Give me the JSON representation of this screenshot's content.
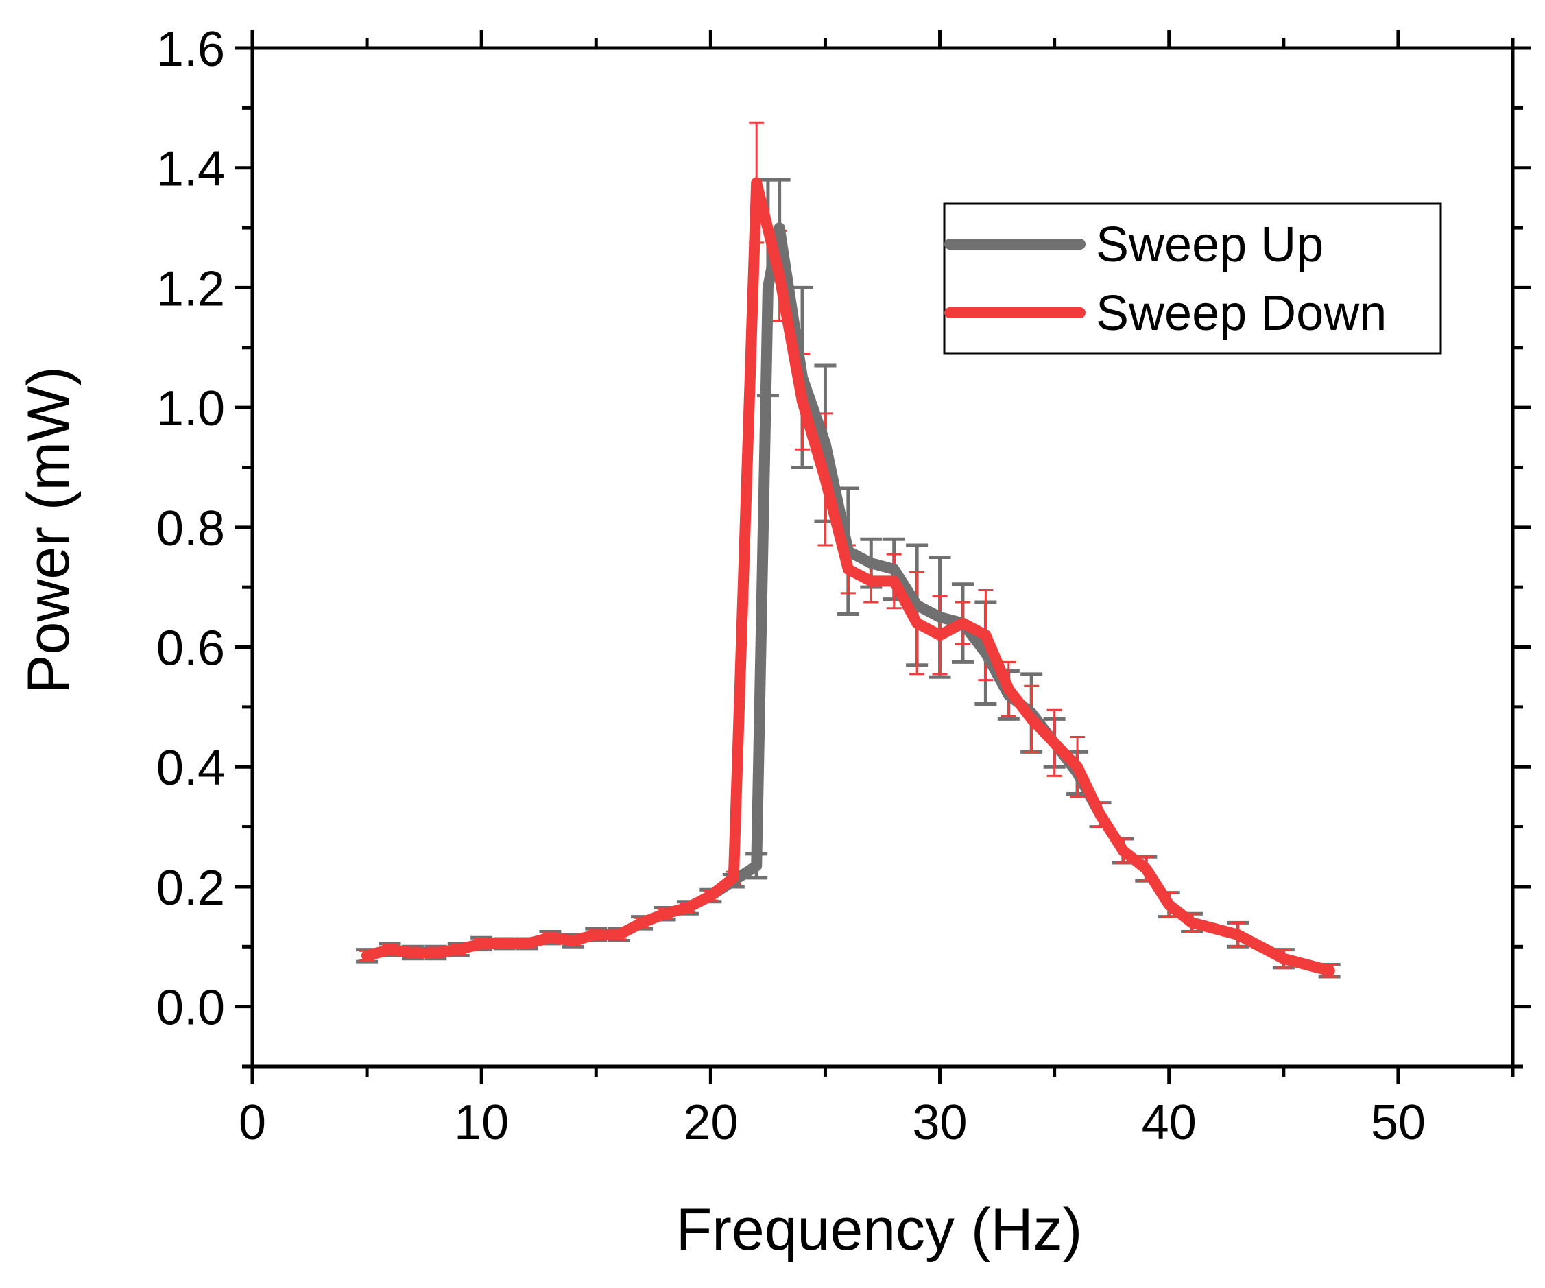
{
  "chart_data": {
    "type": "line",
    "xlabel": "Frequency (Hz)",
    "ylabel": "Power (mW)",
    "xlim": [
      0,
      55
    ],
    "ylim": [
      -0.1,
      1.6
    ],
    "x_ticks": [
      0,
      10,
      20,
      30,
      40,
      50
    ],
    "x_tick_labels": [
      "0",
      "10",
      "20",
      "30",
      "40",
      "50"
    ],
    "y_ticks": [
      0.0,
      0.2,
      0.4,
      0.6,
      0.8,
      1.0,
      1.2,
      1.4,
      1.6
    ],
    "y_tick_labels": [
      "0.0",
      "0.2",
      "0.4",
      "0.6",
      "0.8",
      "1.0",
      "1.2",
      "1.4",
      "1.6"
    ],
    "grid": false,
    "legend_position": "top-right",
    "series": [
      {
        "name": "Sweep Up",
        "color": "#707070",
        "x": [
          5,
          6,
          7,
          8,
          9,
          10,
          11,
          12,
          13,
          14,
          15,
          16,
          17,
          18,
          19,
          20,
          21,
          22,
          22.5,
          23,
          24,
          25,
          26,
          27,
          28,
          29,
          30,
          31,
          32,
          33,
          34,
          35,
          36,
          37,
          38,
          39,
          40,
          41,
          43,
          45,
          47
        ],
        "y": [
          0.085,
          0.095,
          0.09,
          0.09,
          0.095,
          0.105,
          0.105,
          0.105,
          0.115,
          0.11,
          0.12,
          0.12,
          0.14,
          0.155,
          0.165,
          0.185,
          0.21,
          0.235,
          1.2,
          1.3,
          1.05,
          0.94,
          0.76,
          0.74,
          0.73,
          0.67,
          0.65,
          0.64,
          0.59,
          0.52,
          0.49,
          0.44,
          0.39,
          0.32,
          0.26,
          0.23,
          0.17,
          0.14,
          0.12,
          0.08,
          0.06
        ],
        "err": [
          0.01,
          0.01,
          0.01,
          0.01,
          0.01,
          0.01,
          0.008,
          0.008,
          0.01,
          0.01,
          0.01,
          0.01,
          0.01,
          0.01,
          0.01,
          0.01,
          0.01,
          0.02,
          0.18,
          0.08,
          0.15,
          0.13,
          0.105,
          0.04,
          0.05,
          0.1,
          0.1,
          0.065,
          0.085,
          0.04,
          0.065,
          0.04,
          0.035,
          0.02,
          0.02,
          0.02,
          0.02,
          0.015,
          0.02,
          0.015,
          0.01
        ]
      },
      {
        "name": "Sweep Down",
        "color": "#f23b3b",
        "x": [
          5,
          6,
          7,
          8,
          9,
          10,
          11,
          12,
          13,
          14,
          15,
          16,
          17,
          18,
          19,
          20,
          21,
          22,
          23,
          24,
          25,
          26,
          27,
          28,
          29,
          30,
          31,
          32,
          33,
          34,
          35,
          36,
          37,
          38,
          39,
          40,
          41,
          43,
          45,
          47
        ],
        "y": [
          0.085,
          0.095,
          0.09,
          0.09,
          0.095,
          0.105,
          0.105,
          0.105,
          0.115,
          0.11,
          0.12,
          0.12,
          0.14,
          0.155,
          0.165,
          0.185,
          0.215,
          1.375,
          1.22,
          1.01,
          0.88,
          0.73,
          0.71,
          0.71,
          0.64,
          0.62,
          0.64,
          0.62,
          0.53,
          0.48,
          0.44,
          0.4,
          0.32,
          0.26,
          0.23,
          0.17,
          0.14,
          0.12,
          0.08,
          0.06
        ],
        "err": [
          0.008,
          0.008,
          0.008,
          0.008,
          0.008,
          0.008,
          0.006,
          0.006,
          0.008,
          0.008,
          0.008,
          0.008,
          0.008,
          0.008,
          0.008,
          0.008,
          0.01,
          0.1,
          0.075,
          0.08,
          0.11,
          0.04,
          0.035,
          0.045,
          0.085,
          0.065,
          0.035,
          0.075,
          0.045,
          0.055,
          0.055,
          0.05,
          0.02,
          0.02,
          0.02,
          0.02,
          0.015,
          0.02,
          0.015,
          0.01
        ]
      }
    ]
  }
}
